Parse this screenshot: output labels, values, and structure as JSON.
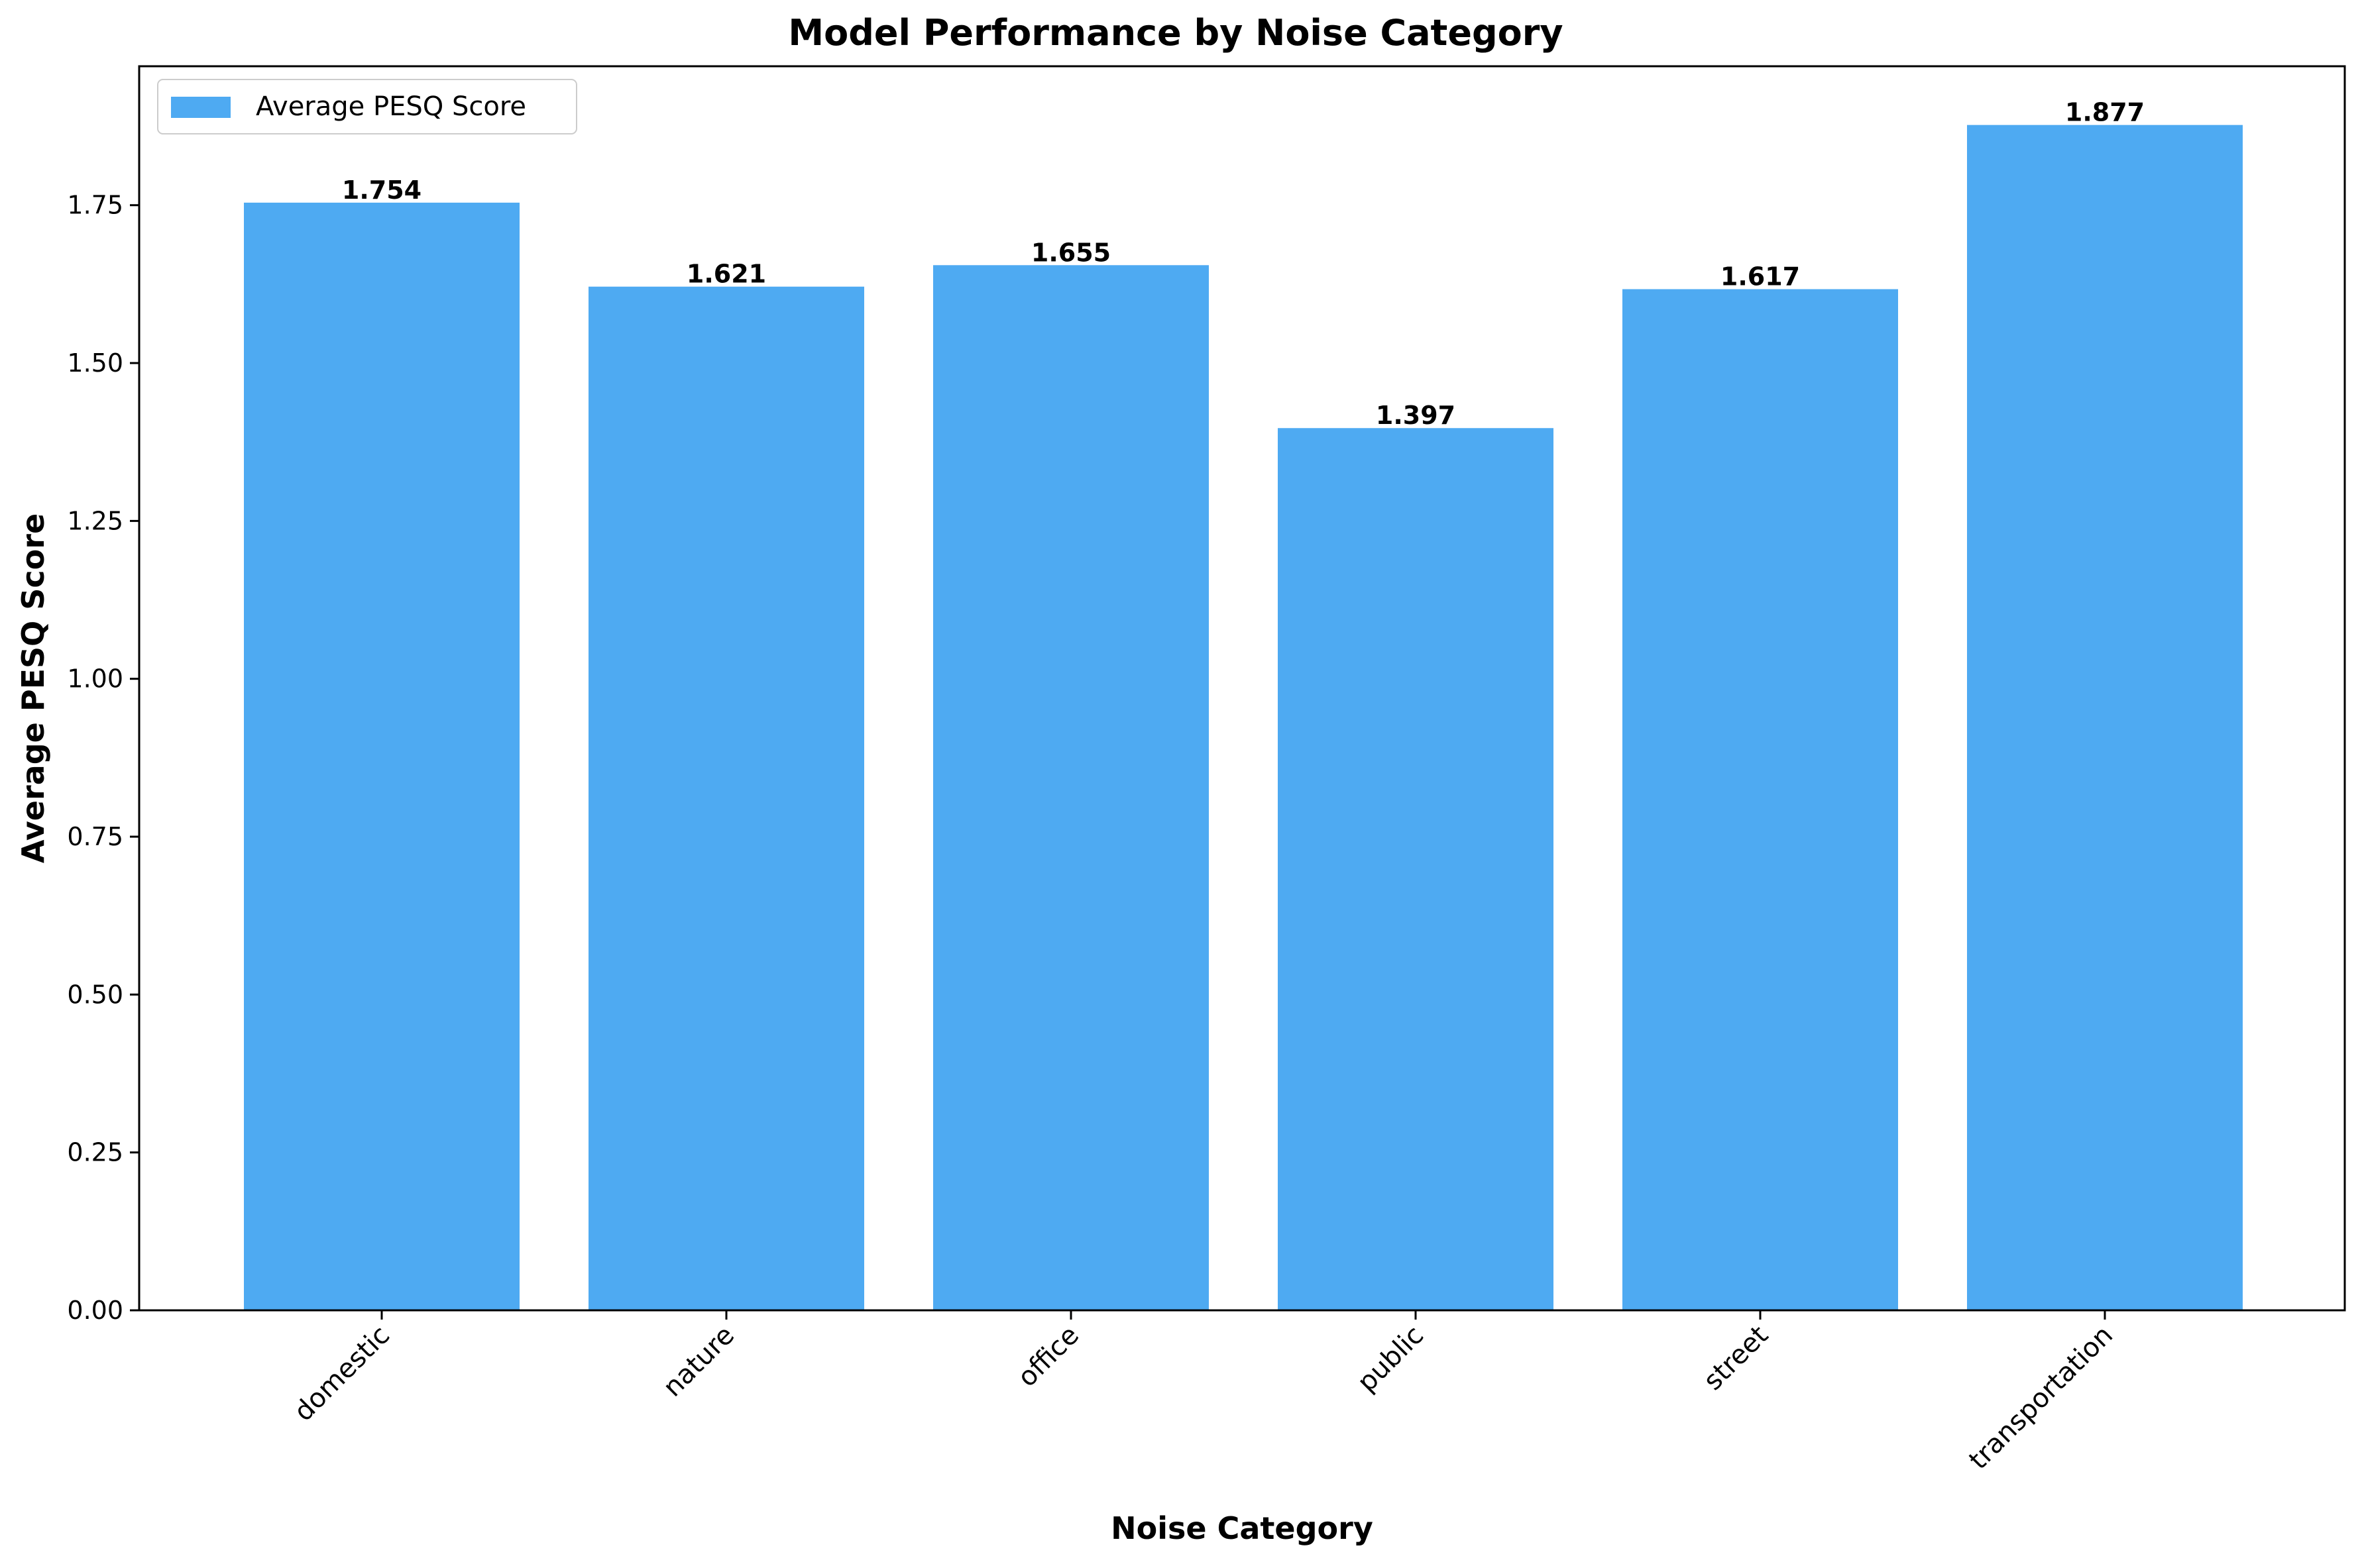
{
  "chart_data": {
    "type": "bar",
    "title": "Model Performance by Noise Category",
    "xlabel": "Noise Category",
    "ylabel": "Average PESQ Score",
    "categories": [
      "domestic",
      "nature",
      "office",
      "public",
      "street",
      "transportation"
    ],
    "series": [
      {
        "name": "Average PESQ Score",
        "values": [
          1.754,
          1.621,
          1.655,
          1.397,
          1.617,
          1.877
        ],
        "value_labels": [
          "1.754",
          "1.621",
          "1.655",
          "1.397",
          "1.617",
          "1.877"
        ],
        "color": "#4eaaf2"
      }
    ],
    "ylim": [
      0,
      1.97
    ],
    "yticks": [
      0,
      0.25,
      0.5,
      0.75,
      1.0,
      1.25,
      1.5,
      1.75
    ],
    "ytick_labels": [
      "0.00",
      "0.25",
      "0.50",
      "0.75",
      "1.00",
      "1.25",
      "1.50",
      "1.75"
    ],
    "xtick_rotation_deg": 45,
    "grid": false,
    "legend_position": "top-left"
  }
}
